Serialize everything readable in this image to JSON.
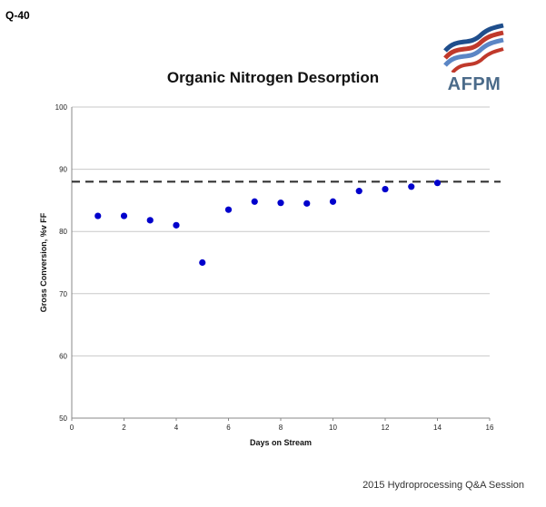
{
  "slide_label": "Q-40",
  "logo": {
    "text": "AFPM",
    "colors": [
      "#1f4e8c",
      "#c0392b",
      "#5b86c5"
    ]
  },
  "footer": "2015 Hydroprocessing Q&A Session",
  "chart_data": {
    "type": "scatter",
    "title": "Organic Nitrogen Desorption",
    "xlabel": "Days on Stream",
    "ylabel": "Gross Conversion, %v FF",
    "xlim": [
      0,
      16
    ],
    "ylim": [
      50,
      100
    ],
    "xticks": [
      0,
      2,
      4,
      6,
      8,
      10,
      12,
      14,
      16
    ],
    "yticks": [
      50,
      60,
      70,
      80,
      90,
      100
    ],
    "grid": "horizontal",
    "marker_color": "#0000cc",
    "reference_line": {
      "y": 88,
      "style": "dashed",
      "color": "#333333"
    },
    "series": [
      {
        "x": [
          1,
          2,
          3,
          4,
          5,
          6,
          7,
          8,
          9,
          10,
          11,
          12,
          13,
          14
        ],
        "y": [
          82.5,
          82.5,
          81.8,
          81.0,
          75.0,
          83.5,
          84.8,
          84.6,
          84.5,
          84.8,
          86.5,
          86.8,
          87.2,
          87.8
        ]
      }
    ]
  }
}
